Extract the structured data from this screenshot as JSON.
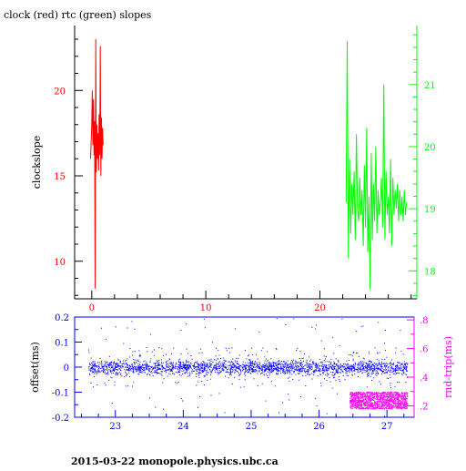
{
  "page": {
    "title": "clock (red) rtc (green) slopes",
    "footer": "2015-03-22  monopole.physics.ubc.ca"
  },
  "colors": {
    "clock": "#ff0000",
    "rtc": "#00ff00",
    "offset": "#0000ff",
    "rndtrip": "#ff00ff",
    "frame": "#000000"
  },
  "chart_data": [
    {
      "type": "line",
      "title": "clock (red) rtc (green) slopes",
      "ylabel": "clockslope",
      "xlim": [
        -1.5,
        28.5
      ],
      "ylim": [
        7.8,
        23.8
      ],
      "y2lim": [
        17.55,
        21.95
      ],
      "xticks": [
        0,
        10,
        20
      ],
      "yticks": [
        10,
        15,
        20
      ],
      "y2ticks": [
        18,
        19,
        20,
        21
      ],
      "grid": false,
      "series": [
        {
          "name": "clock",
          "color": "#ff0000",
          "axis": "left",
          "x": [
            -0.1,
            0.0,
            0.05,
            0.1,
            0.15,
            0.2,
            0.25,
            0.3,
            0.35,
            0.4,
            0.45,
            0.5,
            0.55,
            0.6,
            0.65,
            0.7,
            0.75,
            0.8,
            0.85,
            0.9,
            0.95,
            1.0
          ],
          "y": [
            16.0,
            18.0,
            20.0,
            16.8,
            19.5,
            16.2,
            18.2,
            8.4,
            23.0,
            15.2,
            18.0,
            16.0,
            17.5,
            15.3,
            18.6,
            16.2,
            22.6,
            15.0,
            18.4,
            16.0,
            17.8,
            16.8
          ]
        },
        {
          "name": "rtc",
          "color": "#00ff00",
          "axis": "right",
          "x": [
            22.3,
            22.4,
            22.5,
            22.6,
            22.7,
            22.8,
            22.9,
            23.0,
            23.1,
            23.2,
            23.3,
            23.4,
            23.5,
            23.6,
            23.7,
            23.8,
            23.9,
            24.0,
            24.1,
            24.2,
            24.3,
            24.4,
            24.5,
            24.6,
            24.7,
            24.8,
            24.9,
            25.0,
            25.1,
            25.2,
            25.3,
            25.4,
            25.5,
            25.6,
            25.7,
            25.8,
            25.9,
            26.0,
            26.1,
            26.2,
            26.3,
            26.4,
            26.5,
            26.6,
            26.7,
            26.8,
            26.9,
            27.0,
            27.1,
            27.2,
            27.3,
            27.4,
            27.5,
            27.6
          ],
          "y": [
            19.1,
            21.7,
            18.2,
            19.8,
            18.6,
            19.4,
            18.9,
            19.6,
            18.5,
            20.2,
            19.0,
            18.8,
            19.5,
            18.9,
            19.3,
            18.4,
            19.7,
            18.7,
            20.3,
            18.3,
            19.2,
            17.7,
            19.9,
            18.5,
            19.4,
            18.8,
            20.0,
            18.6,
            19.3,
            18.9,
            19.1,
            19.5,
            18.7,
            21.0,
            18.5,
            19.6,
            18.9,
            19.2,
            18.6,
            19.8,
            18.4,
            19.5,
            18.9,
            19.3,
            19.0,
            19.4,
            18.8,
            19.3,
            18.9,
            19.2,
            18.8,
            19.3,
            18.9,
            19.1
          ]
        }
      ]
    },
    {
      "type": "scatter",
      "ylabel": "offset(ms)",
      "y2label": "rnd-trip(ms)",
      "xlim": [
        22.4,
        27.4
      ],
      "ylim": [
        -0.2,
        0.2
      ],
      "y2lim": [
        0.12,
        0.82
      ],
      "xticks": [
        23,
        24,
        25,
        26,
        27
      ],
      "yticks": [
        -0.2,
        -0.1,
        0,
        0.1,
        0.2
      ],
      "y2ticks": [
        0.2,
        0.4,
        0.6,
        0.8
      ],
      "y2ticklabels": [
        ".2",
        ".4",
        ".6",
        ".8"
      ],
      "grid": false,
      "series": [
        {
          "name": "offset",
          "color": "#0000ff",
          "axis": "left",
          "x_range": [
            22.6,
            27.3
          ],
          "baseline": 0.0,
          "typical_spread": 0.02,
          "excursions_range": [
            -0.2,
            0.2
          ]
        },
        {
          "name": "rnd-trip",
          "color": "#ff00ff",
          "axis": "right",
          "x_range": [
            26.45,
            27.3
          ],
          "y_range": [
            0.18,
            0.3
          ]
        }
      ]
    }
  ]
}
